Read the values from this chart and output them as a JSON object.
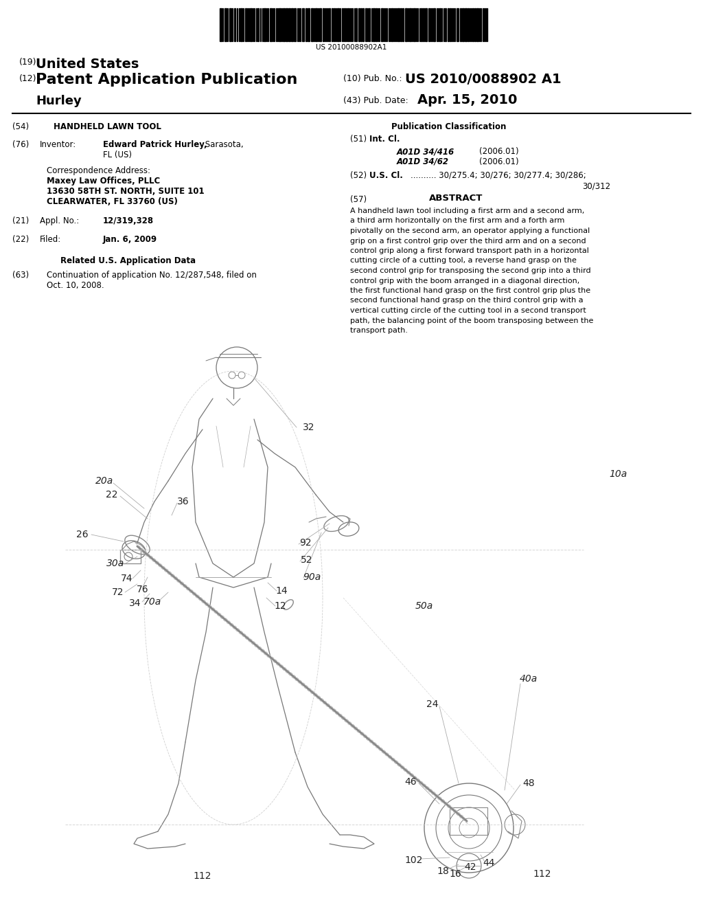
{
  "background_color": "#ffffff",
  "barcode_text": "US 20100088902A1",
  "title_19": "(19) United States",
  "title_12_prefix": "(12)",
  "title_12_main": "Patent Application Publication",
  "pub_no_label": "(10) Pub. No.:",
  "pub_no_value": "US 2010/0088902 A1",
  "pub_date_label": "(43) Pub. Date:",
  "pub_date_value": "Apr. 15, 2010",
  "inventor_surname": "Hurley",
  "section_54_title": "HANDHELD LAWN TOOL",
  "inventor_bold": "Edward Patrick Hurley,",
  "inventor_rest": " Sarasota,",
  "inventor_line2": "FL (US)",
  "corr_addr_label": "Correspondence Address:",
  "corr_addr_line1": "Maxey Law Offices, PLLC",
  "corr_addr_line2": "13630 58TH ST. NORTH, SUITE 101",
  "corr_addr_line3": "CLEARWATER, FL 33760 (US)",
  "appl_no_value": "12/319,328",
  "filed_value": "Jan. 6, 2009",
  "related_title": "Related U.S. Application Data",
  "cont_text1": "Continuation of application No. 12/287,548, filed on",
  "cont_text2": "Oct. 10, 2008.",
  "pub_class_title": "Publication Classification",
  "int_cl_line1": "A01D 34/416",
  "int_cl_date1": "(2006.01)",
  "int_cl_line2": "A01D 34/62",
  "int_cl_date2": "(2006.01)",
  "us_cl_val1": ".......... 30/275.4; 30/276; 30/277.4; 30/286;",
  "us_cl_val2": "30/312",
  "abstract_title": "ABSTRACT",
  "abstract_lines": [
    "A handheld lawn tool including a first arm and a second arm,",
    "a third arm horizontally on the first arm and a forth arm",
    "pivotally on the second arm, an operator applying a functional",
    "grip on a first control grip over the third arm and on a second",
    "control grip along a first forward transport path in a horizontal",
    "cutting circle of a cutting tool, a reverse hand grasp on the",
    "second control grip for transposing the second grip into a third",
    "control grip with the boom arranged in a diagonal direction,",
    "the first functional hand grasp on the first control grip plus the",
    "second functional hand grasp on the third control grip with a",
    "vertical cutting circle of the cutting tool in a second transport",
    "path, the balancing point of the boom transposing between the",
    "transport path."
  ]
}
